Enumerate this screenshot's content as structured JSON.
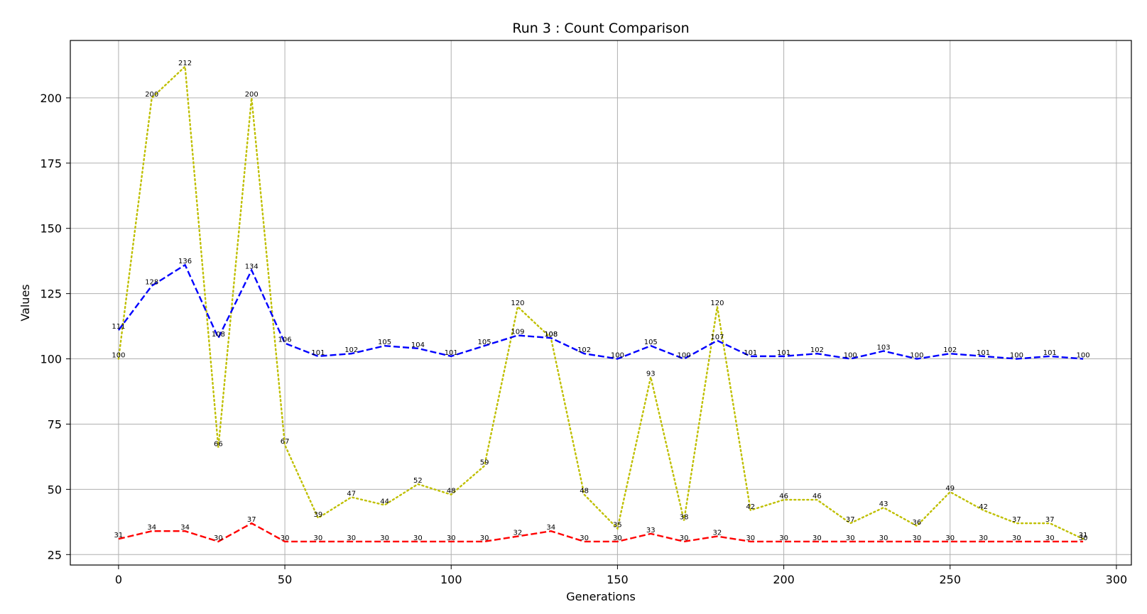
{
  "chart_data": {
    "type": "line",
    "title": "Run 3 : Count Comparison",
    "xlabel": "Generations",
    "ylabel": "Values",
    "xlim": [
      -14.5,
      304.5
    ],
    "ylim": [
      21,
      222
    ],
    "xticks": [
      0,
      50,
      100,
      150,
      200,
      250,
      300
    ],
    "yticks": [
      25,
      50,
      75,
      100,
      125,
      150,
      175,
      200
    ],
    "grid": true,
    "x": [
      0,
      10,
      20,
      30,
      40,
      50,
      60,
      70,
      80,
      90,
      100,
      110,
      120,
      130,
      140,
      150,
      160,
      170,
      180,
      190,
      200,
      210,
      220,
      230,
      240,
      250,
      260,
      270,
      280,
      290
    ],
    "series": [
      {
        "name": "yellow-dotted",
        "color": "#bfbf00",
        "style": "dotted",
        "values": [
          100,
          200,
          212,
          66,
          200,
          67,
          39,
          47,
          44,
          52,
          48,
          59,
          120,
          108,
          48,
          35,
          93,
          38,
          120,
          42,
          46,
          46,
          37,
          43,
          36,
          49,
          42,
          37,
          37,
          31
        ]
      },
      {
        "name": "blue-dashed",
        "color": "#0000ff",
        "style": "dashed",
        "values": [
          111,
          128,
          136,
          108,
          134,
          106,
          101,
          102,
          105,
          104,
          101,
          105,
          109,
          108,
          102,
          100,
          105,
          100,
          107,
          101,
          101,
          102,
          100,
          103,
          100,
          102,
          101,
          100,
          101,
          100
        ]
      },
      {
        "name": "red-dashed",
        "color": "#ff0000",
        "style": "dashed",
        "values": [
          31,
          34,
          34,
          30,
          37,
          30,
          30,
          30,
          30,
          30,
          30,
          30,
          32,
          34,
          30,
          30,
          33,
          30,
          32,
          30,
          30,
          30,
          30,
          30,
          30,
          30,
          30,
          30,
          30,
          30
        ]
      }
    ]
  }
}
